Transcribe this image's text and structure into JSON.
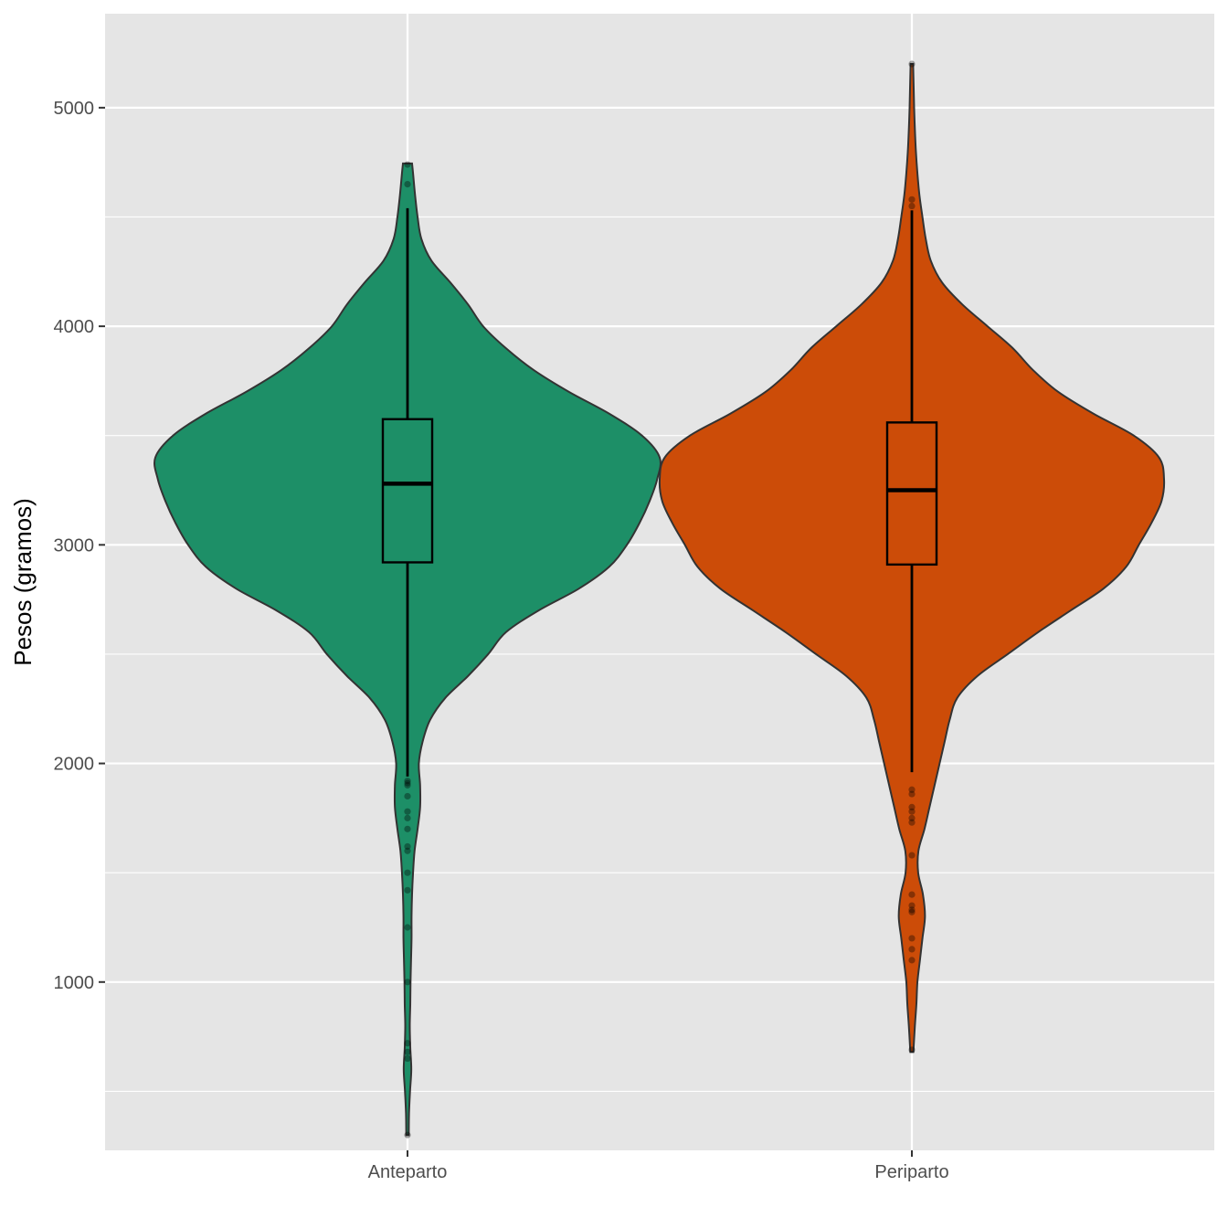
{
  "chart_data": {
    "type": "violin",
    "title": "",
    "xlabel": "",
    "ylabel": "Pesos (gramos)",
    "ylim": [
      230,
      5430
    ],
    "y_ticks": [
      1000,
      2000,
      3000,
      4000,
      5000
    ],
    "y_minor_ticks": [
      500,
      1500,
      2500,
      3500,
      4500
    ],
    "grid": true,
    "background": "#e5e5e5",
    "grid_color": "#ffffff",
    "outline_color": "#333333",
    "categories": [
      "Anteparto",
      "Periparto"
    ],
    "series": [
      {
        "category": "Anteparto",
        "color": "#1d8f67",
        "box": {
          "min": 1940,
          "q1": 2920,
          "median": 3280,
          "q3": 3575,
          "max": 4540
        },
        "density": [
          [
            300,
            0.005
          ],
          [
            400,
            0.006
          ],
          [
            500,
            0.01
          ],
          [
            600,
            0.015
          ],
          [
            700,
            0.011
          ],
          [
            800,
            0.009
          ],
          [
            900,
            0.011
          ],
          [
            1000,
            0.012
          ],
          [
            1100,
            0.014
          ],
          [
            1200,
            0.016
          ],
          [
            1300,
            0.016
          ],
          [
            1400,
            0.018
          ],
          [
            1500,
            0.022
          ],
          [
            1600,
            0.028
          ],
          [
            1700,
            0.04
          ],
          [
            1800,
            0.05
          ],
          [
            1900,
            0.05
          ],
          [
            2000,
            0.045
          ],
          [
            2100,
            0.06
          ],
          [
            2200,
            0.09
          ],
          [
            2300,
            0.15
          ],
          [
            2400,
            0.24
          ],
          [
            2500,
            0.32
          ],
          [
            2600,
            0.39
          ],
          [
            2700,
            0.52
          ],
          [
            2800,
            0.68
          ],
          [
            2900,
            0.8
          ],
          [
            3000,
            0.87
          ],
          [
            3100,
            0.92
          ],
          [
            3200,
            0.96
          ],
          [
            3300,
            0.99
          ],
          [
            3400,
            1.0
          ],
          [
            3500,
            0.93
          ],
          [
            3600,
            0.8
          ],
          [
            3700,
            0.64
          ],
          [
            3800,
            0.5
          ],
          [
            3900,
            0.39
          ],
          [
            4000,
            0.3
          ],
          [
            4100,
            0.24
          ],
          [
            4200,
            0.17
          ],
          [
            4300,
            0.095
          ],
          [
            4400,
            0.055
          ],
          [
            4500,
            0.04
          ],
          [
            4600,
            0.03
          ],
          [
            4700,
            0.022
          ],
          [
            4745,
            0.018
          ]
        ],
        "outliers": [
          1920,
          1910,
          1900,
          1850,
          1780,
          1750,
          1700,
          1620,
          1600,
          1500,
          1420,
          1250,
          1000,
          720,
          680,
          650,
          300,
          4650,
          4740
        ]
      },
      {
        "category": "Periparto",
        "color": "#cc4c08",
        "box": {
          "min": 1960,
          "q1": 2910,
          "median": 3250,
          "q3": 3560,
          "max": 4530
        },
        "density": [
          [
            680,
            0.006
          ],
          [
            800,
            0.012
          ],
          [
            900,
            0.018
          ],
          [
            1000,
            0.022
          ],
          [
            1100,
            0.032
          ],
          [
            1200,
            0.042
          ],
          [
            1300,
            0.052
          ],
          [
            1400,
            0.044
          ],
          [
            1500,
            0.025
          ],
          [
            1600,
            0.026
          ],
          [
            1700,
            0.05
          ],
          [
            1800,
            0.07
          ],
          [
            1900,
            0.09
          ],
          [
            2000,
            0.11
          ],
          [
            2100,
            0.13
          ],
          [
            2200,
            0.15
          ],
          [
            2300,
            0.18
          ],
          [
            2400,
            0.26
          ],
          [
            2500,
            0.38
          ],
          [
            2600,
            0.5
          ],
          [
            2700,
            0.63
          ],
          [
            2800,
            0.76
          ],
          [
            2900,
            0.85
          ],
          [
            3000,
            0.9
          ],
          [
            3100,
            0.95
          ],
          [
            3200,
            0.99
          ],
          [
            3300,
            1.0
          ],
          [
            3400,
            0.98
          ],
          [
            3500,
            0.88
          ],
          [
            3600,
            0.72
          ],
          [
            3700,
            0.58
          ],
          [
            3800,
            0.48
          ],
          [
            3900,
            0.4
          ],
          [
            4000,
            0.3
          ],
          [
            4100,
            0.2
          ],
          [
            4200,
            0.12
          ],
          [
            4300,
            0.075
          ],
          [
            4400,
            0.055
          ],
          [
            4500,
            0.042
          ],
          [
            4600,
            0.03
          ],
          [
            4700,
            0.022
          ],
          [
            4800,
            0.016
          ],
          [
            4900,
            0.012
          ],
          [
            5000,
            0.009
          ],
          [
            5100,
            0.007
          ],
          [
            5200,
            0.005
          ]
        ],
        "outliers": [
          1880,
          1860,
          1800,
          1780,
          1750,
          1730,
          1580,
          1400,
          1350,
          1330,
          1320,
          1200,
          1150,
          1100,
          690,
          4550,
          4580,
          5200
        ]
      }
    ]
  }
}
